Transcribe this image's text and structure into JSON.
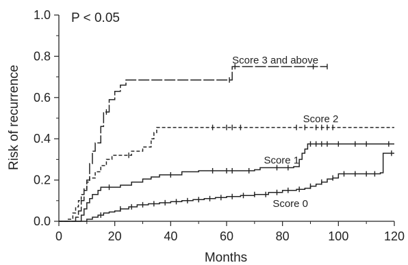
{
  "chart_data": {
    "type": "line",
    "subtype": "kaplan-meier-cumulative-incidence",
    "title": "",
    "xlabel": "Months",
    "ylabel": "Risk of recurrence",
    "annotation": "P < 0.05",
    "xlim": [
      0,
      120
    ],
    "ylim": [
      0,
      1.0
    ],
    "x_ticks": [
      "0",
      "20",
      "40",
      "60",
      "80",
      "100",
      "120"
    ],
    "y_ticks": [
      "0.0",
      "0.2",
      "0.4",
      "0.6",
      "0.8",
      "1.0"
    ],
    "grid": false,
    "legend": "none",
    "series": [
      {
        "name": "Score 3 and above",
        "line_style": "long-dash",
        "color": "#222222",
        "steps": [
          [
            0,
            0
          ],
          [
            6,
            0.02
          ],
          [
            7,
            0.05
          ],
          [
            8,
            0.1
          ],
          [
            9,
            0.15
          ],
          [
            10,
            0.2
          ],
          [
            11,
            0.28
          ],
          [
            12,
            0.34
          ],
          [
            13,
            0.38
          ],
          [
            15,
            0.46
          ],
          [
            16,
            0.53
          ],
          [
            18,
            0.59
          ],
          [
            20,
            0.63
          ],
          [
            22,
            0.66
          ],
          [
            24,
            0.685
          ],
          [
            61,
            0.685
          ],
          [
            62,
            0.75
          ],
          [
            96,
            0.75
          ]
        ],
        "censored": [
          [
            17,
            0.53
          ],
          [
            61,
            0.685
          ],
          [
            63,
            0.75
          ],
          [
            91,
            0.75
          ],
          [
            96,
            0.75
          ]
        ]
      },
      {
        "name": "Score 2",
        "line_style": "short-dash",
        "color": "#222222",
        "steps": [
          [
            0,
            0
          ],
          [
            3,
            0.01
          ],
          [
            5,
            0.04
          ],
          [
            6,
            0.07
          ],
          [
            7,
            0.1
          ],
          [
            8,
            0.13
          ],
          [
            9,
            0.16
          ],
          [
            10,
            0.19
          ],
          [
            11,
            0.21
          ],
          [
            13,
            0.24
          ],
          [
            15,
            0.27
          ],
          [
            17,
            0.3
          ],
          [
            19,
            0.32
          ],
          [
            26,
            0.34
          ],
          [
            30,
            0.36
          ],
          [
            33,
            0.4
          ],
          [
            34,
            0.43
          ],
          [
            35,
            0.455
          ],
          [
            120,
            0.455
          ]
        ],
        "censored": [
          [
            25,
            0.34
          ],
          [
            55,
            0.455
          ],
          [
            60,
            0.455
          ],
          [
            62,
            0.455
          ],
          [
            65,
            0.455
          ],
          [
            85,
            0.455
          ],
          [
            88,
            0.455
          ],
          [
            92,
            0.455
          ],
          [
            94,
            0.455
          ],
          [
            96,
            0.455
          ],
          [
            98,
            0.455
          ]
        ]
      },
      {
        "name": "Score 1",
        "line_style": "solid",
        "color": "#222222",
        "steps": [
          [
            0,
            0
          ],
          [
            8,
            0.03
          ],
          [
            9,
            0.06
          ],
          [
            10,
            0.09
          ],
          [
            11,
            0.11
          ],
          [
            12,
            0.13
          ],
          [
            14,
            0.15
          ],
          [
            15,
            0.165
          ],
          [
            22,
            0.175
          ],
          [
            26,
            0.19
          ],
          [
            30,
            0.205
          ],
          [
            33,
            0.215
          ],
          [
            36,
            0.225
          ],
          [
            44,
            0.24
          ],
          [
            50,
            0.245
          ],
          [
            70,
            0.25
          ],
          [
            72,
            0.26
          ],
          [
            84,
            0.265
          ],
          [
            86,
            0.3
          ],
          [
            87,
            0.33
          ],
          [
            88,
            0.35
          ],
          [
            89,
            0.375
          ],
          [
            120,
            0.375
          ]
        ],
        "censored": [
          [
            18,
            0.165
          ],
          [
            40,
            0.225
          ],
          [
            55,
            0.245
          ],
          [
            60,
            0.245
          ],
          [
            62,
            0.245
          ],
          [
            68,
            0.245
          ],
          [
            78,
            0.26
          ],
          [
            82,
            0.26
          ],
          [
            90,
            0.375
          ],
          [
            92,
            0.375
          ],
          [
            94,
            0.375
          ],
          [
            96,
            0.375
          ],
          [
            100,
            0.375
          ],
          [
            106,
            0.375
          ],
          [
            110,
            0.375
          ],
          [
            118,
            0.375
          ]
        ]
      },
      {
        "name": "Score 0",
        "line_style": "solid",
        "color": "#222222",
        "steps": [
          [
            0,
            0
          ],
          [
            10,
            0.01
          ],
          [
            12,
            0.02
          ],
          [
            14,
            0.03
          ],
          [
            16,
            0.04
          ],
          [
            18,
            0.045
          ],
          [
            20,
            0.05
          ],
          [
            22,
            0.06
          ],
          [
            25,
            0.07
          ],
          [
            28,
            0.08
          ],
          [
            32,
            0.085
          ],
          [
            36,
            0.09
          ],
          [
            40,
            0.095
          ],
          [
            44,
            0.1
          ],
          [
            48,
            0.105
          ],
          [
            52,
            0.11
          ],
          [
            56,
            0.115
          ],
          [
            60,
            0.12
          ],
          [
            65,
            0.125
          ],
          [
            70,
            0.13
          ],
          [
            75,
            0.14
          ],
          [
            80,
            0.15
          ],
          [
            85,
            0.155
          ],
          [
            88,
            0.16
          ],
          [
            90,
            0.17
          ],
          [
            92,
            0.18
          ],
          [
            94,
            0.19
          ],
          [
            96,
            0.205
          ],
          [
            98,
            0.21
          ],
          [
            100,
            0.23
          ],
          [
            115,
            0.235
          ],
          [
            116,
            0.33
          ],
          [
            120,
            0.33
          ]
        ],
        "censored": [
          [
            15,
            0.04
          ],
          [
            22,
            0.06
          ],
          [
            26,
            0.07
          ],
          [
            30,
            0.08
          ],
          [
            34,
            0.085
          ],
          [
            38,
            0.09
          ],
          [
            42,
            0.095
          ],
          [
            46,
            0.1
          ],
          [
            50,
            0.105
          ],
          [
            54,
            0.11
          ],
          [
            58,
            0.115
          ],
          [
            62,
            0.12
          ],
          [
            66,
            0.125
          ],
          [
            70,
            0.13
          ],
          [
            74,
            0.135
          ],
          [
            78,
            0.14
          ],
          [
            82,
            0.15
          ],
          [
            86,
            0.155
          ],
          [
            90,
            0.17
          ],
          [
            94,
            0.19
          ],
          [
            98,
            0.21
          ],
          [
            102,
            0.23
          ],
          [
            106,
            0.23
          ],
          [
            110,
            0.23
          ],
          [
            113,
            0.23
          ],
          [
            119,
            0.33
          ]
        ]
      }
    ]
  }
}
